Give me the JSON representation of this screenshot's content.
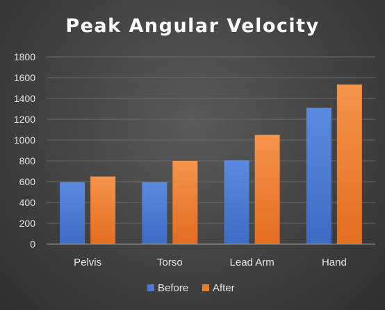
{
  "chart_data": {
    "type": "bar",
    "title": "Peak Angular Velocity",
    "categories": [
      "Pelvis",
      "Torso",
      "Lead Arm",
      "Hand"
    ],
    "series": [
      {
        "name": "Before",
        "values": [
          595,
          595,
          805,
          1310
        ],
        "color": "#4a78d2"
      },
      {
        "name": "After",
        "values": [
          650,
          800,
          1050,
          1535
        ],
        "color": "#ed7d31"
      }
    ],
    "ylim": [
      0,
      1800
    ],
    "yticks": [
      "0",
      "200",
      "400",
      "600",
      "800",
      "1000",
      "1200",
      "1400",
      "1600",
      "1800"
    ],
    "grid": true,
    "legend": "bottom"
  }
}
